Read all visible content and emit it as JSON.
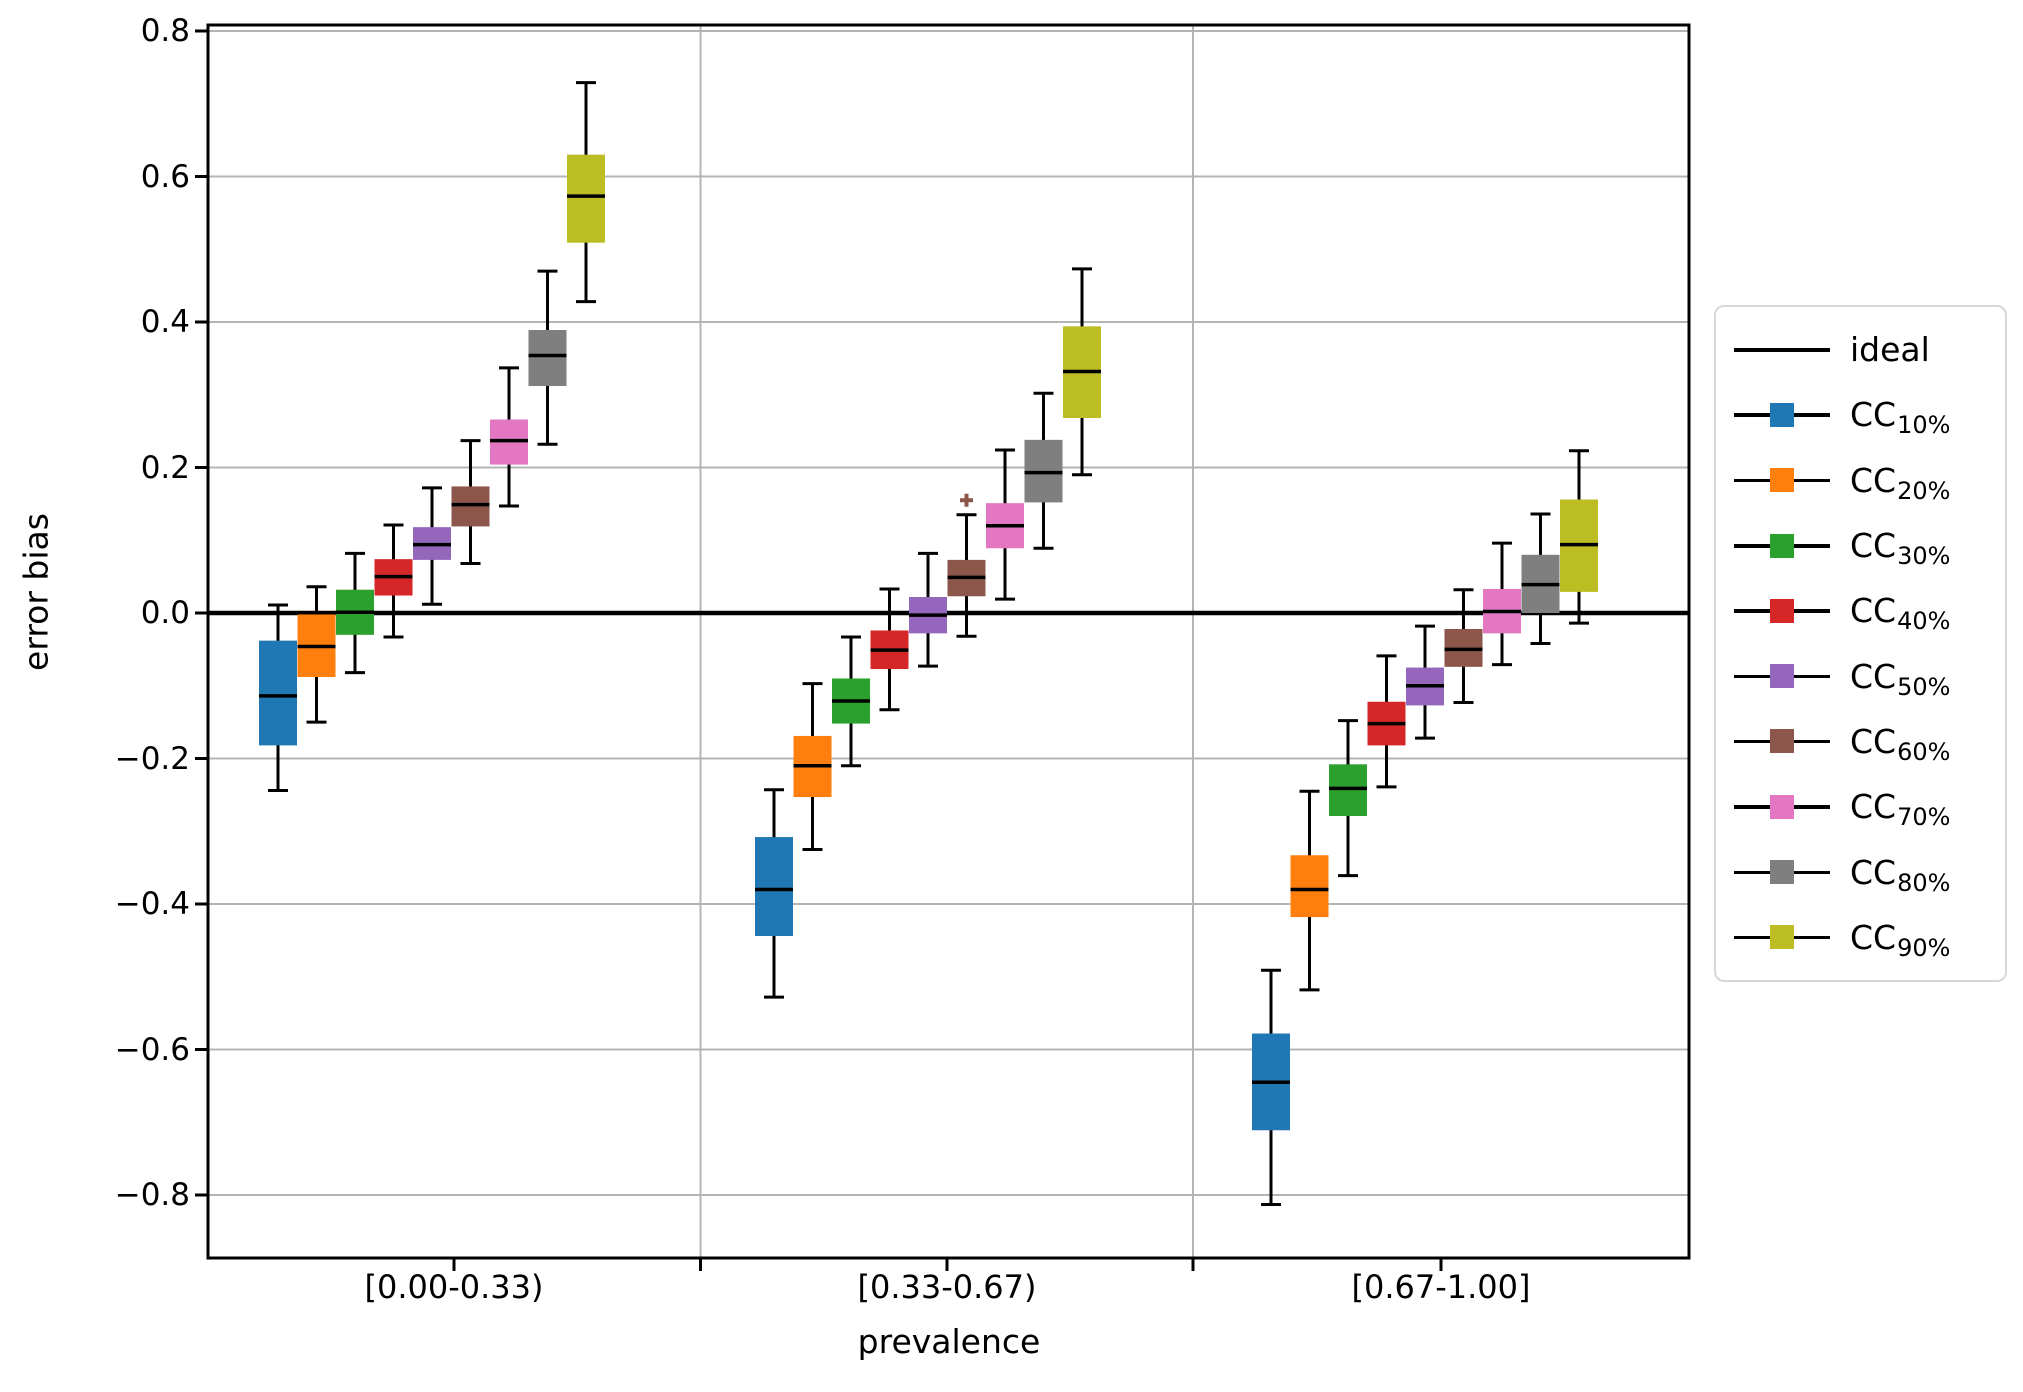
{
  "chart_data": {
    "type": "boxplot",
    "title": "",
    "xlabel": "prevalence",
    "ylabel": "error bias",
    "ylim": [
      -0.89,
      0.81
    ],
    "grid": true,
    "yticks": [
      0.8,
      0.6,
      0.4,
      0.2,
      0.0,
      -0.2,
      -0.4,
      -0.6,
      -0.8
    ],
    "ytick_labels": [
      "0.8",
      "0.6",
      "0.4",
      "0.2",
      "0.0",
      "−0.2",
      "−0.4",
      "−0.6",
      "−0.8"
    ],
    "groups": [
      "[0.00-0.33)",
      "[0.33-0.67)",
      "[0.67-1.00]"
    ],
    "ideal_line": {
      "label": "ideal",
      "y": 0.0,
      "color": "#000000"
    },
    "series": [
      {
        "name": "CC",
        "sub": "10%",
        "color": "#1f77b4",
        "boxes": [
          {
            "whislo": -0.244,
            "q1": -0.182,
            "med": -0.114,
            "q3": -0.038,
            "whishi": 0.011,
            "fliers": []
          },
          {
            "whislo": -0.528,
            "q1": -0.444,
            "med": -0.38,
            "q3": -0.308,
            "whishi": -0.243,
            "fliers": []
          },
          {
            "whislo": -0.813,
            "q1": -0.711,
            "med": -0.645,
            "q3": -0.578,
            "whishi": -0.491,
            "fliers": []
          }
        ]
      },
      {
        "name": "CC",
        "sub": "20%",
        "color": "#ff7f0e",
        "boxes": [
          {
            "whislo": -0.15,
            "q1": -0.088,
            "med": -0.046,
            "q3": -0.002,
            "whishi": 0.036,
            "fliers": []
          },
          {
            "whislo": -0.325,
            "q1": -0.253,
            "med": -0.21,
            "q3": -0.169,
            "whishi": -0.097,
            "fliers": []
          },
          {
            "whislo": -0.518,
            "q1": -0.418,
            "med": -0.38,
            "q3": -0.333,
            "whishi": -0.245,
            "fliers": []
          }
        ]
      },
      {
        "name": "CC",
        "sub": "30%",
        "color": "#2ca02c",
        "boxes": [
          {
            "whislo": -0.082,
            "q1": -0.03,
            "med": 0.001,
            "q3": 0.032,
            "whishi": 0.082,
            "fliers": []
          },
          {
            "whislo": -0.21,
            "q1": -0.152,
            "med": -0.121,
            "q3": -0.09,
            "whishi": -0.033,
            "fliers": []
          },
          {
            "whislo": -0.361,
            "q1": -0.279,
            "med": -0.241,
            "q3": -0.208,
            "whishi": -0.148,
            "fliers": []
          }
        ]
      },
      {
        "name": "CC",
        "sub": "40%",
        "color": "#d62728",
        "boxes": [
          {
            "whislo": -0.033,
            "q1": 0.024,
            "med": 0.05,
            "q3": 0.074,
            "whishi": 0.121,
            "fliers": []
          },
          {
            "whislo": -0.133,
            "q1": -0.077,
            "med": -0.051,
            "q3": -0.024,
            "whishi": 0.033,
            "fliers": []
          },
          {
            "whislo": -0.239,
            "q1": -0.182,
            "med": -0.152,
            "q3": -0.122,
            "whishi": -0.059,
            "fliers": []
          }
        ]
      },
      {
        "name": "CC",
        "sub": "50%",
        "color": "#9467bd",
        "boxes": [
          {
            "whislo": 0.012,
            "q1": 0.073,
            "med": 0.094,
            "q3": 0.118,
            "whishi": 0.172,
            "fliers": []
          },
          {
            "whislo": -0.073,
            "q1": -0.028,
            "med": -0.003,
            "q3": 0.022,
            "whishi": 0.082,
            "fliers": []
          },
          {
            "whislo": -0.172,
            "q1": -0.127,
            "med": -0.1,
            "q3": -0.075,
            "whishi": -0.018,
            "fliers": []
          }
        ]
      },
      {
        "name": "CC",
        "sub": "60%",
        "color": "#8c564b",
        "boxes": [
          {
            "whislo": 0.068,
            "q1": 0.119,
            "med": 0.149,
            "q3": 0.174,
            "whishi": 0.237,
            "fliers": []
          },
          {
            "whislo": -0.032,
            "q1": 0.023,
            "med": 0.049,
            "q3": 0.073,
            "whishi": 0.135,
            "fliers": [
              0.155
            ]
          },
          {
            "whislo": -0.123,
            "q1": -0.074,
            "med": -0.05,
            "q3": -0.022,
            "whishi": 0.032,
            "fliers": []
          }
        ]
      },
      {
        "name": "CC",
        "sub": "70%",
        "color": "#e377c2",
        "boxes": [
          {
            "whislo": 0.147,
            "q1": 0.204,
            "med": 0.237,
            "q3": 0.266,
            "whishi": 0.337,
            "fliers": []
          },
          {
            "whislo": 0.019,
            "q1": 0.089,
            "med": 0.12,
            "q3": 0.151,
            "whishi": 0.224,
            "fliers": []
          },
          {
            "whislo": -0.071,
            "q1": -0.028,
            "med": 0.002,
            "q3": 0.033,
            "whishi": 0.096,
            "fliers": []
          }
        ]
      },
      {
        "name": "CC",
        "sub": "80%",
        "color": "#7f7f7f",
        "boxes": [
          {
            "whislo": 0.232,
            "q1": 0.312,
            "med": 0.354,
            "q3": 0.389,
            "whishi": 0.47,
            "fliers": []
          },
          {
            "whislo": 0.089,
            "q1": 0.152,
            "med": 0.193,
            "q3": 0.238,
            "whishi": 0.302,
            "fliers": []
          },
          {
            "whislo": -0.042,
            "q1": 0.0,
            "med": 0.039,
            "q3": 0.08,
            "whishi": 0.136,
            "fliers": []
          }
        ]
      },
      {
        "name": "CC",
        "sub": "90%",
        "color": "#bcbd22",
        "boxes": [
          {
            "whislo": 0.428,
            "q1": 0.509,
            "med": 0.573,
            "q3": 0.63,
            "whishi": 0.729,
            "fliers": []
          },
          {
            "whislo": 0.19,
            "q1": 0.268,
            "med": 0.332,
            "q3": 0.394,
            "whishi": 0.473,
            "fliers": []
          },
          {
            "whislo": -0.014,
            "q1": 0.029,
            "med": 0.094,
            "q3": 0.156,
            "whishi": 0.223,
            "fliers": []
          }
        ]
      }
    ],
    "legend": {
      "position": "right",
      "entries": [
        {
          "label": "ideal"
        },
        {
          "label": "CC",
          "sub": "10%",
          "color": "#1f77b4"
        },
        {
          "label": "CC",
          "sub": "20%",
          "color": "#ff7f0e"
        },
        {
          "label": "CC",
          "sub": "30%",
          "color": "#2ca02c"
        },
        {
          "label": "CC",
          "sub": "40%",
          "color": "#d62728"
        },
        {
          "label": "CC",
          "sub": "50%",
          "color": "#9467bd"
        },
        {
          "label": "CC",
          "sub": "60%",
          "color": "#8c564b"
        },
        {
          "label": "CC",
          "sub": "70%",
          "color": "#e377c2"
        },
        {
          "label": "CC",
          "sub": "80%",
          "color": "#7f7f7f"
        },
        {
          "label": "CC",
          "sub": "90%",
          "color": "#bcbd22"
        }
      ]
    },
    "style": {
      "grid_color": "#b4b4b4",
      "spine_color": "#000000",
      "background": "#ffffff"
    }
  }
}
